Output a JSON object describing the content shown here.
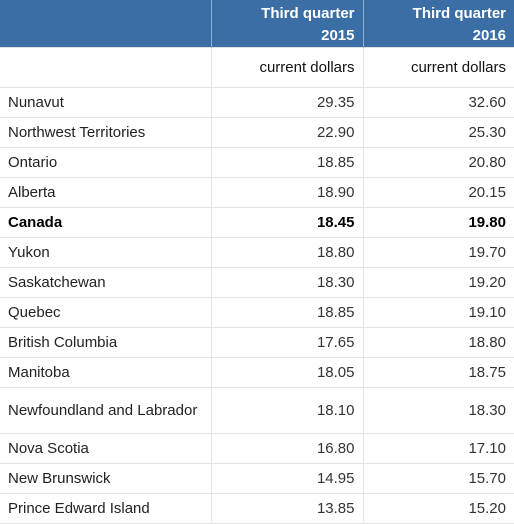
{
  "header": {
    "col1": {
      "line1": "Third quarter",
      "line2": "2015"
    },
    "col2": {
      "line1": "Third quarter",
      "line2": "2016"
    }
  },
  "units": {
    "col1": "current dollars",
    "col2": "current dollars"
  },
  "rows": [
    {
      "region": "Nunavut",
      "q3_2015": "29.35",
      "q3_2016": "32.60"
    },
    {
      "region": "Northwest Territories",
      "q3_2015": "22.90",
      "q3_2016": "25.30"
    },
    {
      "region": "Ontario",
      "q3_2015": "18.85",
      "q3_2016": "20.80"
    },
    {
      "region": "Alberta",
      "q3_2015": "18.90",
      "q3_2016": "20.15"
    },
    {
      "region": "Canada",
      "q3_2015": "18.45",
      "q3_2016": "19.80",
      "bold": true
    },
    {
      "region": "Yukon",
      "q3_2015": "18.80",
      "q3_2016": "19.70"
    },
    {
      "region": "Saskatchewan",
      "q3_2015": "18.30",
      "q3_2016": "19.20"
    },
    {
      "region": "Quebec",
      "q3_2015": "18.85",
      "q3_2016": "19.10"
    },
    {
      "region": "British Columbia",
      "q3_2015": "17.65",
      "q3_2016": "18.80"
    },
    {
      "region": "Manitoba",
      "q3_2015": "18.05",
      "q3_2016": "18.75"
    },
    {
      "region": "Newfoundland and Labrador",
      "q3_2015": "18.10",
      "q3_2016": "18.30",
      "tall": true
    },
    {
      "region": "Nova Scotia",
      "q3_2015": "16.80",
      "q3_2016": "17.10"
    },
    {
      "region": "New Brunswick",
      "q3_2015": "14.95",
      "q3_2016": "15.70"
    },
    {
      "region": "Prince Edward Island",
      "q3_2015": "13.85",
      "q3_2016": "15.20"
    }
  ],
  "colors": {
    "header_bg": "#3a6ea5",
    "header_text": "#ffffff",
    "grid": "#e3e3e3"
  }
}
